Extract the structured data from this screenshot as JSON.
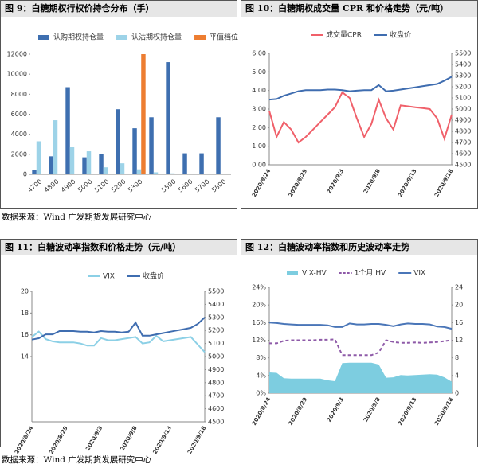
{
  "chart_data": [
    {
      "type": "bar",
      "title": "图 9：白糖期权行权价持仓分布（手）",
      "categories": [
        "4700",
        "4800",
        "4900",
        "5000",
        "5100",
        "5200",
        "5300",
        null,
        "5500",
        "5600",
        "5700",
        "5800"
      ],
      "series": [
        {
          "name": "认购期权持仓量",
          "color": "#3e6fb0",
          "values": [
            400,
            1800,
            8700,
            1700,
            2000,
            6500,
            4600,
            5700,
            11200,
            2100,
            2100,
            5700
          ]
        },
        {
          "name": "认沽期权持仓量",
          "color": "#9dd3e8",
          "values": [
            3300,
            5400,
            2700,
            2300,
            700,
            1100,
            500,
            200,
            100,
            0,
            0,
            0
          ]
        },
        {
          "name": "平值档位",
          "color": "#ed7d31",
          "values": [
            null,
            null,
            null,
            null,
            null,
            null,
            12000,
            null,
            null,
            null,
            null,
            null
          ]
        }
      ],
      "ylim": [
        0,
        12000
      ],
      "yticks": [
        0,
        2000,
        4000,
        6000,
        8000,
        10000,
        12000
      ],
      "legend": "top"
    },
    {
      "type": "line",
      "title": "图 10：白糖期权成交量 CPR 和价格走势（元/吨）",
      "categories": [
        "2020/8/24",
        null,
        null,
        null,
        null,
        "2020/8/29",
        null,
        null,
        null,
        null,
        "2020/9/3",
        null,
        null,
        null,
        null,
        "2020/9/8",
        null,
        null,
        null,
        null,
        "2020/9/13",
        null,
        null,
        null,
        null,
        "2020/9/18"
      ],
      "series": [
        {
          "name": "成交量CPR",
          "color": "#f0606a",
          "style": "solid",
          "values": [
            2.9,
            1.5,
            2.3,
            1.9,
            1.2,
            1.5,
            1.9,
            2.3,
            2.7,
            3.1,
            3.9,
            3.6,
            2.5,
            1.5,
            2.2,
            3.5,
            2.5,
            1.9,
            3.2,
            3.15,
            3.1,
            3.05,
            3.0,
            2.5,
            1.4,
            2.7
          ]
        },
        {
          "name": "收盘价",
          "color": "#3f6db0",
          "style": "solid",
          "axis": "y2",
          "values": [
            5085,
            5090,
            5120,
            5140,
            5160,
            5170,
            5170,
            5170,
            5175,
            5175,
            5170,
            5160,
            5165,
            5170,
            5170,
            5215,
            5160,
            5165,
            5175,
            5185,
            5195,
            5205,
            5215,
            5225,
            5255,
            5290
          ]
        }
      ],
      "ylim": [
        0,
        6
      ],
      "yticks": [
        {
          "value": 0,
          "label": "0.00"
        },
        {
          "value": 1,
          "label": "1.00"
        },
        {
          "value": 2,
          "label": "2.00"
        },
        {
          "value": 3,
          "label": "3.00"
        },
        {
          "value": 4,
          "label": "4.00"
        },
        {
          "value": 5,
          "label": "5.00"
        },
        {
          "value": 6,
          "label": "6.00"
        }
      ],
      "y2lim": [
        4500,
        5500
      ],
      "y2ticks": [
        4500,
        4600,
        4700,
        4800,
        4900,
        5000,
        5100,
        5200,
        5300,
        5400,
        5500
      ],
      "legend": "top"
    },
    {
      "type": "line",
      "title": "图 11：白糖波动率指数和价格走势（元/吨）",
      "categories": [
        "2020/8/24",
        null,
        null,
        null,
        null,
        "2020/8/29",
        null,
        null,
        null,
        null,
        "2020/9/3",
        null,
        null,
        null,
        null,
        "2020/9/8",
        null,
        null,
        null,
        null,
        "2020/9/13",
        null,
        null,
        null,
        null,
        "2020/9/18"
      ],
      "series": [
        {
          "name": "VIX",
          "color": "#8cd0e6",
          "style": "solid",
          "values": [
            15.8,
            16.3,
            15.6,
            15.4,
            15.3,
            15.3,
            15.3,
            15.2,
            15.0,
            15.0,
            15.7,
            15.5,
            15.5,
            15.6,
            15.7,
            15.8,
            15.2,
            15.3,
            15.9,
            15.4,
            15.5,
            15.6,
            15.7,
            15.8,
            15.1,
            14.4
          ]
        },
        {
          "name": "收盘价",
          "color": "#3f6db0",
          "style": "solid",
          "axis": "y2",
          "values": [
            5130,
            5140,
            5170,
            5170,
            5195,
            5195,
            5195,
            5190,
            5190,
            5185,
            5195,
            5190,
            5190,
            5185,
            5190,
            5260,
            5160,
            5160,
            5170,
            5180,
            5190,
            5200,
            5210,
            5220,
            5250,
            5300
          ]
        }
      ],
      "ylim": [
        8,
        20
      ],
      "yticks": [
        14,
        16,
        18,
        20
      ],
      "y2lim": [
        4500,
        5500
      ],
      "y2ticks": [
        4500,
        4600,
        4700,
        4800,
        4900,
        5000,
        5100,
        5200,
        5300,
        5400,
        5500
      ],
      "legend": "top"
    },
    {
      "type": "line",
      "title": "图 12：白糖波动率指数和历史波动率走势",
      "categories": [
        "2020/8/24",
        null,
        null,
        null,
        null,
        "2020/8/29",
        null,
        null,
        null,
        null,
        "2020/9/3",
        null,
        null,
        null,
        null,
        "2020/9/8",
        null,
        null,
        null,
        null,
        "2020/9/13",
        null,
        null,
        null,
        null,
        "2020/9/18"
      ],
      "series": [
        {
          "name": "VIX-HV",
          "color": "#7dcde0",
          "style": "area",
          "values": [
            4.7,
            4.6,
            3.4,
            3.3,
            3.3,
            3.3,
            3.3,
            3.3,
            2.9,
            2.7,
            6.8,
            6.9,
            6.9,
            6.9,
            6.9,
            6.5,
            3.5,
            3.6,
            4.1,
            4.0,
            4.1,
            4.2,
            4.3,
            4.2,
            3.6,
            2.6
          ]
        },
        {
          "name": "1个月 HV",
          "color": "#8e5aa8",
          "style": "dashed",
          "values": [
            11.3,
            11.3,
            11.9,
            12.0,
            12.0,
            12.0,
            12.0,
            12.1,
            12.1,
            12.2,
            8.6,
            8.6,
            8.6,
            8.6,
            8.6,
            9.2,
            12.0,
            11.6,
            11.4,
            11.4,
            11.5,
            11.4,
            11.5,
            11.6,
            11.8,
            12.0
          ]
        },
        {
          "name": "VIX",
          "color": "#4a76b8",
          "style": "solid",
          "values": [
            16.0,
            15.9,
            15.7,
            15.6,
            15.5,
            15.5,
            15.5,
            15.5,
            15.4,
            15.0,
            15.0,
            15.8,
            15.6,
            15.6,
            15.7,
            15.7,
            15.5,
            15.2,
            15.6,
            15.8,
            15.7,
            15.7,
            15.6,
            15.1,
            15.0,
            14.6
          ]
        }
      ],
      "ylim": [
        0,
        24
      ],
      "yticks": [
        {
          "value": 0,
          "label": "0%"
        },
        {
          "value": 4,
          "label": "4%"
        },
        {
          "value": 8,
          "label": "8%"
        },
        {
          "value": 12,
          "label": "12%"
        },
        {
          "value": 16,
          "label": "16%"
        },
        {
          "value": 20,
          "label": "20%"
        },
        {
          "value": 24,
          "label": "24%"
        }
      ],
      "y2lim": [
        0,
        24
      ],
      "y2ticks": [
        0,
        4,
        8,
        12,
        16,
        20,
        24
      ],
      "legend": "top"
    }
  ],
  "sources": [
    "数据来源：Wind 广发期货发展研究中心",
    "数据来源：Wind 广发期货发展研究中心"
  ]
}
